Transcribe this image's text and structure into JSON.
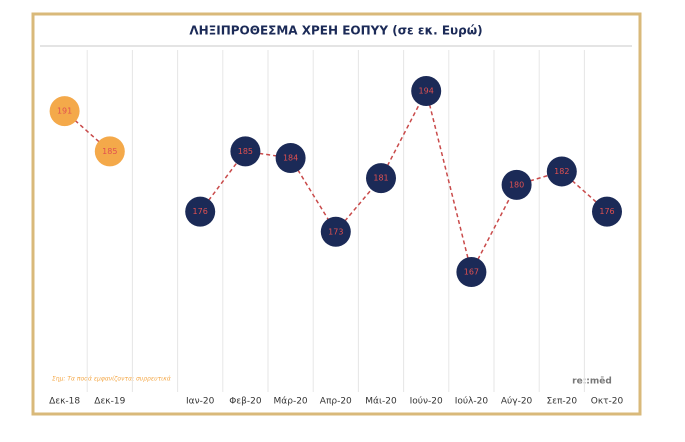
{
  "chart_data": {
    "type": "line",
    "title": "ΛΗΞΙΠΡΟΘΕΣΜΑ ΧΡΕΗ ΕΟΠΥΥ (σε εκ. Ευρώ)",
    "categories": [
      "Δεκ-18",
      "Δεκ-19",
      null,
      "Ιαν-20",
      "Φεβ-20",
      "Μάρ-20",
      "Απρ-20",
      "Μάι-20",
      "Ιούν-20",
      "Ιούλ-20",
      "Αύγ-20",
      "Σεπ-20",
      "Οκτ-20"
    ],
    "series": [
      {
        "color": "#f4a94a",
        "values": [
          191,
          185,
          null,
          null,
          null,
          null,
          null,
          null,
          null,
          null,
          null,
          null,
          null
        ]
      },
      {
        "color": "#1b2a57",
        "values": [
          null,
          null,
          null,
          176,
          185,
          184,
          173,
          181,
          194,
          167,
          180,
          182,
          176
        ]
      }
    ],
    "grid": true,
    "note": "Σημ: Τα ποσά εμφανίζονται συρρευτικά",
    "logo": "re::mēd"
  }
}
